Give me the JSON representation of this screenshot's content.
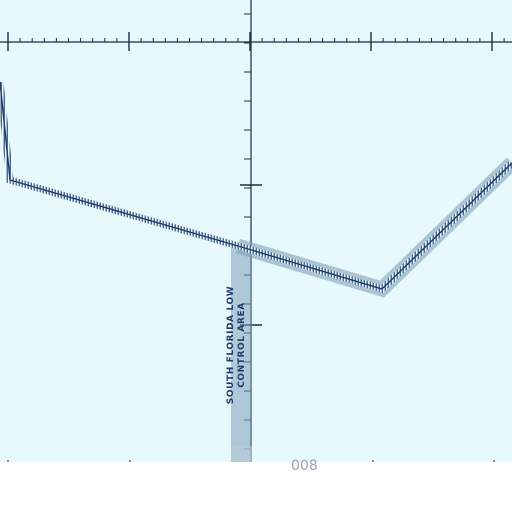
{
  "chart": {
    "background_color": "#e8f9fd",
    "margin_color": "#ffffff",
    "gridline_color": "#1c2a44",
    "boundary_color": "#1c3b6b",
    "control_area_band_color": "#7fa0b8"
  },
  "labels": {
    "area_line1": "SOUTH FLORIDA LOW",
    "area_line2": "CONTROL AREA",
    "partial_number": "008"
  },
  "airspace_boundaries": [
    {
      "name": "hatched-boundary-west",
      "style": "hatched"
    },
    {
      "name": "control-area-boundary-east",
      "style": "tinted-band"
    }
  ]
}
